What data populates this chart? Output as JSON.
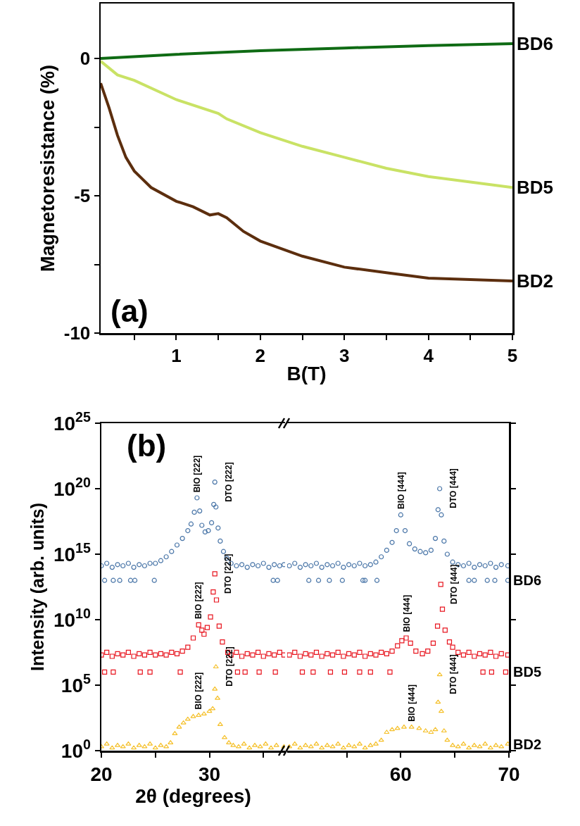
{
  "chart_data": [
    {
      "type": "line",
      "xlabel": "B(T)",
      "ylabel": "Magnetoresistance (%)",
      "xlim": [
        0.1,
        5
      ],
      "xticks": [
        {
          "value": 0.5,
          "label": null
        },
        1,
        {
          "value": 1.5,
          "label": null
        },
        2,
        {
          "value": 2.5,
          "label": null
        },
        3,
        {
          "value": 3.5,
          "label": null
        },
        4,
        {
          "value": 4.5,
          "label": null
        },
        5
      ],
      "ylim": [
        -10,
        2
      ],
      "yticks": [
        -10,
        {
          "value": -7.5,
          "label": null
        },
        -5,
        {
          "value": -2.5,
          "label": null
        },
        0
      ],
      "grid": false,
      "legend": false,
      "line_style": "solid",
      "annotations": [
        "(a)"
      ],
      "series": [
        {
          "name": "BD6",
          "color": "#0f6b14",
          "x": [
            0.1,
            1,
            2,
            3,
            4,
            5
          ],
          "values": [
            0,
            0.15,
            0.28,
            0.38,
            0.47,
            0.54
          ]
        },
        {
          "name": "BD5",
          "color": "#c9e265",
          "x": [
            0.1,
            0.3,
            0.5,
            1,
            1.5,
            1.6,
            2,
            2.5,
            3,
            3.5,
            4,
            4.5,
            5
          ],
          "values": [
            -0.1,
            -0.6,
            -0.8,
            -1.5,
            -2.0,
            -2.2,
            -2.7,
            -3.2,
            -3.6,
            -4.0,
            -4.3,
            -4.5,
            -4.7
          ]
        },
        {
          "name": "BD2",
          "color": "#5c2e0e",
          "x": [
            0.1,
            0.2,
            0.3,
            0.4,
            0.5,
            0.7,
            1,
            1.2,
            1.4,
            1.5,
            1.6,
            1.8,
            2,
            2.5,
            3,
            3.5,
            4,
            4.5,
            5
          ],
          "values": [
            -0.9,
            -1.8,
            -2.8,
            -3.6,
            -4.1,
            -4.7,
            -5.2,
            -5.4,
            -5.7,
            -5.65,
            -5.8,
            -6.3,
            -6.65,
            -7.2,
            -7.6,
            -7.8,
            -8.0,
            -8.05,
            -8.1
          ]
        }
      ]
    },
    {
      "type": "scatter",
      "xlabel": "2θ (degrees)",
      "ylabel": "Intensity (arb. units)",
      "log": true,
      "grid": false,
      "legend": false,
      "xlim": [
        20,
        37
      ],
      "xticks": [
        20,
        {
          "value": 25,
          "label": null
        },
        30,
        {
          "value": 35,
          "label": null
        }
      ],
      "ylim": [
        1,
        1e+25
      ],
      "yticks": [
        {
          "value": 1,
          "label": "10$^{0}$"
        },
        {
          "value": 100000.0,
          "label": "10$^{5}$"
        },
        {
          "value": 10000000000.0,
          "label": "10$^{10}$"
        },
        {
          "value": 1000000000000000.0,
          "label": "10$^{15}$"
        },
        {
          "value": 1e+20,
          "label": "10$^{20}$"
        },
        {
          "value": 1e+25,
          "label": "10$^{25}$"
        }
      ],
      "annotations": [
        "(b)",
        {
          "text": "BIO [222]",
          "x": 28.85,
          "y": 2e+19
        },
        {
          "text": "DTO [222]",
          "x": 30.5,
          "y": 3.2e+20
        },
        {
          "text": "BIO [222]",
          "x": 29.0,
          "y": 4000000000.0
        },
        {
          "text": "DTO [222]",
          "x": 30.5,
          "y": 32000000000000.0
        },
        {
          "text": "BIO [222]",
          "x": 29,
          "y": 500
        },
        {
          "text": "DTO [222]",
          "x": 30.6,
          "y": 2500000.0
        }
      ],
      "series": [
        {
          "color": "#4a76a8",
          "marker": "circle",
          "x": [
            20,
            20.5,
            21,
            21.5,
            22,
            22.5,
            23,
            23.5,
            24,
            24.5,
            25,
            25.5,
            26,
            26.5,
            27,
            27.5,
            28,
            28.3,
            28.6,
            28.85,
            29.1,
            29.3,
            29.6,
            29.9,
            30.2,
            30.4,
            30.5,
            30.6,
            30.8,
            31,
            31.3,
            31.6,
            32,
            32.5,
            33,
            33.5,
            34,
            34.5,
            35,
            35.5,
            36,
            36.5,
            36.9,
            20.3,
            21.1,
            21.7,
            22.7,
            23.1,
            24.9,
            35.9,
            36.3
          ],
          "values": [
            130000000000000.0,
            200000000000000.0,
            100000000000000.0,
            160000000000000.0,
            130000000000000.0,
            200000000000000.0,
            100000000000000.0,
            160000000000000.0,
            130000000000000.0,
            200000000000000.0,
            200000000000000.0,
            320000000000000.0,
            630000000000000.0,
            1600000000000000.0,
            5000000000000000.0,
            1.6e+16,
            6.3e+16,
            2e+17,
            1.6e+18,
            2e+19,
            2e+18,
            1.6e+17,
            5e+16,
            6.3e+16,
            2.5e+17,
            6.3e+18,
            3.2e+20,
            4e+18,
            1e+17,
            1e+16,
            1600000000000000.0,
            500000000000000.0,
            200000000000000.0,
            130000000000000.0,
            160000000000000.0,
            100000000000000.0,
            160000000000000.0,
            130000000000000.0,
            200000000000000.0,
            100000000000000.0,
            160000000000000.0,
            130000000000000.0,
            160000000000000.0,
            10000000000000.0,
            10000000000000.0,
            10000000000000.0,
            10000000000000.0,
            10000000000000.0,
            10000000000000.0,
            10000000000000.0,
            10000000000000.0
          ]
        },
        {
          "color": "#e8141e",
          "marker": "square",
          "x": [
            20,
            20.5,
            21,
            21.5,
            22,
            22.5,
            23,
            23.5,
            24,
            24.5,
            25,
            25.5,
            26,
            26.5,
            27,
            27.5,
            28,
            28.5,
            29.0,
            29.3,
            29.5,
            29.8,
            30.1,
            30.35,
            30.5,
            30.65,
            30.9,
            31.2,
            31.7,
            32,
            32.5,
            33,
            33.5,
            34,
            34.5,
            35,
            35.5,
            36,
            36.5,
            36.9,
            20.3,
            21.1,
            23.6,
            24.5,
            27.3,
            32.6,
            33.3,
            34.6,
            36.1
          ],
          "values": [
            20000000.0,
            32000000.0,
            16000000.0,
            25000000.0,
            20000000.0,
            32000000.0,
            16000000.0,
            25000000.0,
            20000000.0,
            32000000.0,
            20000000.0,
            25000000.0,
            20000000.0,
            32000000.0,
            25000000.0,
            40000000.0,
            79000000.0,
            400000000.0,
            4000000000.0,
            1600000000.0,
            790000000.0,
            2500000000.0,
            16000000000.0,
            1300000000000.0,
            32000000000000.0,
            320000000000.0,
            3200000000.0,
            200000000.0,
            32000000.0,
            20000000.0,
            32000000.0,
            16000000.0,
            25000000.0,
            20000000.0,
            32000000.0,
            16000000.0,
            25000000.0,
            20000000.0,
            32000000.0,
            20000000.0,
            1000000.0,
            1000000.0,
            1000000.0,
            1000000.0,
            1000000.0,
            1000000.0,
            1000000.0,
            1000000.0,
            1000000.0
          ]
        },
        {
          "color": "#f5c02a",
          "marker": "triangle",
          "x": [
            20,
            20.5,
            21,
            21.5,
            22,
            22.5,
            23,
            23.5,
            24,
            24.5,
            25,
            25.5,
            26,
            26.4,
            26.8,
            27.2,
            27.6,
            28,
            28.5,
            29,
            29.5,
            30,
            30.3,
            30.5,
            30.6,
            30.75,
            31,
            31.4,
            31.8,
            32.2,
            32.7,
            33.2,
            33.7,
            34.2,
            34.7,
            35.2,
            35.7,
            36.2,
            36.9
          ],
          "values": [
            2.0,
            3.2,
            1.6,
            2.5,
            2.0,
            3.2,
            1.6,
            2.5,
            2.0,
            3.2,
            1.6,
            2.5,
            2.0,
            4.0,
            20,
            63,
            130,
            250,
            400,
            500,
            630,
            1000,
            1600,
            50000.0,
            2500000.0,
            10000.0,
            100,
            10,
            4.0,
            2.5,
            2.0,
            3.2,
            1.6,
            2.5,
            2.0,
            3.2,
            1.6,
            2.5,
            2.0
          ]
        }
      ]
    },
    {
      "type": "scatter",
      "log": true,
      "grid": false,
      "legend": false,
      "tick_labels": "x",
      "xlim": [
        49.5,
        70
      ],
      "xticks": [
        {
          "value": 55,
          "label": null
        },
        60,
        {
          "value": 65,
          "label": null
        },
        70
      ],
      "ylim": [
        1,
        1e+25
      ],
      "yticks": [
        {
          "value": 1,
          "label": null
        },
        {
          "value": 100000.0,
          "label": null
        },
        {
          "value": 10000000000.0,
          "label": null
        },
        {
          "value": 1000000000000000.0,
          "label": null
        },
        {
          "value": 1e+20,
          "label": null
        },
        {
          "value": 1e+25,
          "label": null
        }
      ],
      "annotations": [
        {
          "text": "BIO [444]",
          "x": 60.0,
          "y": 1e+18
        },
        {
          "text": "DTO [444]",
          "x": 63.6,
          "y": 1e+20
        },
        {
          "text": "BIO [444]",
          "x": 60.5,
          "y": 400000000.0
        },
        {
          "text": "DTO [444]",
          "x": 63.7,
          "y": 5000000000000.0
        },
        {
          "text": "BIO [444]",
          "x": 61.0,
          "y": 63
        },
        {
          "text": "DTO [444]",
          "x": 63.6,
          "y": 630000.0
        }
      ],
      "series": [
        {
          "name": "BD6",
          "color": "#4a76a8",
          "marker": "circle",
          "x": [
            49.7,
            50.2,
            50.7,
            51.2,
            51.7,
            52.2,
            52.7,
            53.2,
            53.7,
            54.2,
            54.7,
            55.2,
            55.7,
            56.2,
            56.7,
            57.2,
            57.7,
            58.2,
            58.7,
            59.2,
            59.6,
            60.0,
            60.4,
            60.8,
            61.3,
            61.8,
            62.3,
            62.8,
            63.2,
            63.45,
            63.6,
            63.75,
            64.0,
            64.3,
            64.8,
            65.3,
            65.8,
            66.3,
            66.8,
            67.3,
            67.8,
            68.3,
            68.8,
            69.3,
            69.9,
            51.5,
            52.4,
            53.4,
            54.6,
            56.5,
            56.7,
            57.8,
            66.3,
            66.8,
            68.0,
            68.7,
            69.9
          ],
          "values": [
            130000000000000.0,
            200000000000000.0,
            100000000000000.0,
            160000000000000.0,
            130000000000000.0,
            200000000000000.0,
            100000000000000.0,
            160000000000000.0,
            130000000000000.0,
            200000000000000.0,
            100000000000000.0,
            160000000000000.0,
            130000000000000.0,
            200000000000000.0,
            130000000000000.0,
            160000000000000.0,
            250000000000000.0,
            630000000000000.0,
            2000000000000000.0,
            7900000000000000.0,
            6.3e+16,
            1e+18,
            6.3e+16,
            6300000000000000.0,
            2500000000000000.0,
            1600000000000000.0,
            1300000000000000.0,
            2000000000000000.0,
            1.6e+16,
            2.5e+18,
            1e+20,
            1e+18,
            1e+16,
            1000000000000000.0,
            250000000000000.0,
            160000000000000.0,
            130000000000000.0,
            200000000000000.0,
            100000000000000.0,
            160000000000000.0,
            130000000000000.0,
            200000000000000.0,
            100000000000000.0,
            160000000000000.0,
            130000000000000.0,
            10000000000000.0,
            10000000000000.0,
            10000000000000.0,
            10000000000000.0,
            10000000000000.0,
            10000000000000.0,
            10000000000000.0,
            10000000000000.0,
            10000000000000.0,
            10000000000000.0,
            10000000000000.0,
            10000000000000.0
          ]
        },
        {
          "name": "BD5",
          "color": "#e8141e",
          "marker": "square",
          "x": [
            49.7,
            50.2,
            50.7,
            51.2,
            51.7,
            52.2,
            52.7,
            53.2,
            53.7,
            54.2,
            54.7,
            55.2,
            55.7,
            56.2,
            56.7,
            57.2,
            57.7,
            58.2,
            58.7,
            59.2,
            59.7,
            60.1,
            60.5,
            60.9,
            61.4,
            62.0,
            62.5,
            63.0,
            63.4,
            63.7,
            63.85,
            64.1,
            64.5,
            64.8,
            65.3,
            65.8,
            66.3,
            66.8,
            67.3,
            67.8,
            68.3,
            68.8,
            69.3,
            69.9,
            50.9,
            51.9,
            53.5,
            54.8,
            56.2,
            57.2,
            59.0,
            67.6,
            68.4,
            69.7
          ],
          "values": [
            20000000.0,
            32000000.0,
            16000000.0,
            25000000.0,
            20000000.0,
            32000000.0,
            16000000.0,
            25000000.0,
            20000000.0,
            32000000.0,
            16000000.0,
            25000000.0,
            20000000.0,
            32000000.0,
            16000000.0,
            25000000.0,
            20000000.0,
            32000000.0,
            25000000.0,
            40000000.0,
            100000000.0,
            250000000.0,
            400000000.0,
            160000000.0,
            40000000.0,
            25000000.0,
            40000000.0,
            160000000.0,
            3200000000.0,
            5000000000000.0,
            63000000000.0,
            1600000000.0,
            200000000.0,
            79000000.0,
            32000000.0,
            20000000.0,
            32000000.0,
            16000000.0,
            25000000.0,
            20000000.0,
            32000000.0,
            16000000.0,
            25000000.0,
            20000000.0,
            1000000.0,
            1000000.0,
            1000000.0,
            1000000.0,
            1000000.0,
            1000000.0,
            1000000.0,
            1000000.0,
            1000000.0,
            1000000.0
          ]
        },
        {
          "name": "BD2",
          "color": "#f5c02a",
          "marker": "triangle",
          "x": [
            49.7,
            50.2,
            50.7,
            51.2,
            51.7,
            52.2,
            52.7,
            53.2,
            53.7,
            54.2,
            54.7,
            55.2,
            55.7,
            56.2,
            56.7,
            57.2,
            57.7,
            58.2,
            58.7,
            59.2,
            59.7,
            60.3,
            61.0,
            61.7,
            62.3,
            62.8,
            63.2,
            63.45,
            63.6,
            63.75,
            64.0,
            64.3,
            64.8,
            65.3,
            65.8,
            66.3,
            66.8,
            67.3,
            67.8,
            68.3,
            68.8,
            69.3,
            69.9
          ],
          "values": [
            2.0,
            3.2,
            1.6,
            2.5,
            2.0,
            3.2,
            1.6,
            2.5,
            2.0,
            3.2,
            1.6,
            2.5,
            2.0,
            3.2,
            1.6,
            2.5,
            3.2,
            6.3,
            25,
            40,
            50,
            63,
            63,
            50,
            32,
            25,
            40,
            5000,
            630000.0,
            1000,
            32,
            6.3,
            2.5,
            2.0,
            3.2,
            1.6,
            2.5,
            2.0,
            3.2,
            1.6,
            2.5,
            2.0,
            3.2
          ]
        }
      ]
    }
  ]
}
